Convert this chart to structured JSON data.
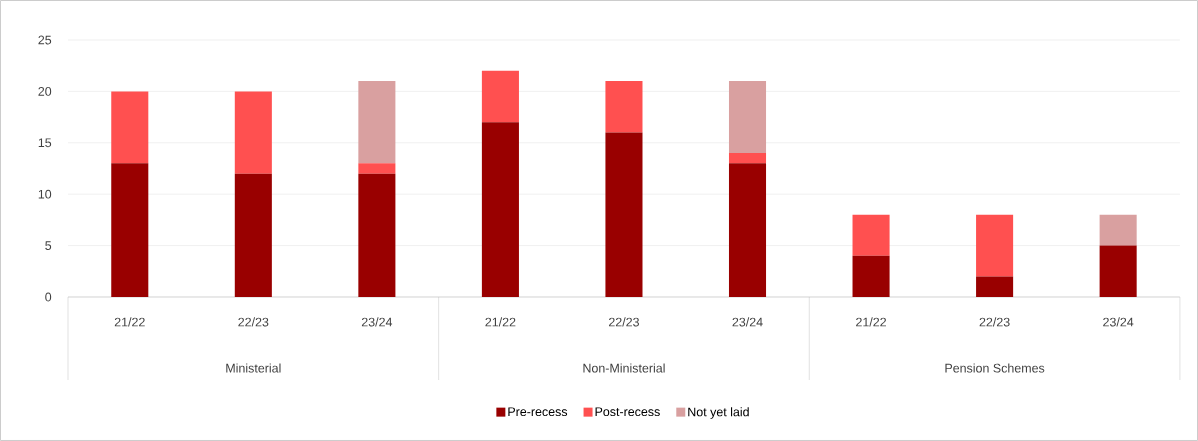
{
  "chart_data": {
    "type": "bar",
    "stacked": true,
    "categories": [
      "21/22",
      "22/23",
      "23/24",
      "21/22",
      "22/23",
      "23/24",
      "21/22",
      "22/23",
      "23/24"
    ],
    "annotations": [
      "Ministerial",
      "Non-Ministerial",
      "Pension Schemes"
    ],
    "series": [
      {
        "name": "Pre-recess",
        "color": "#990000",
        "values": [
          13,
          12,
          12,
          17,
          16,
          13,
          4,
          2,
          5
        ]
      },
      {
        "name": "Post-recess",
        "color": "#ff5050",
        "values": [
          7,
          8,
          1,
          5,
          5,
          1,
          4,
          6,
          0
        ]
      },
      {
        "name": "Not yet laid",
        "color": "#d9a0a0",
        "values": [
          0,
          0,
          8,
          0,
          0,
          7,
          0,
          0,
          3
        ]
      }
    ],
    "ylim": [
      0,
      25
    ],
    "yticks": [
      0,
      5,
      10,
      15,
      20,
      25
    ],
    "grid": "y",
    "legend": "bottom"
  }
}
